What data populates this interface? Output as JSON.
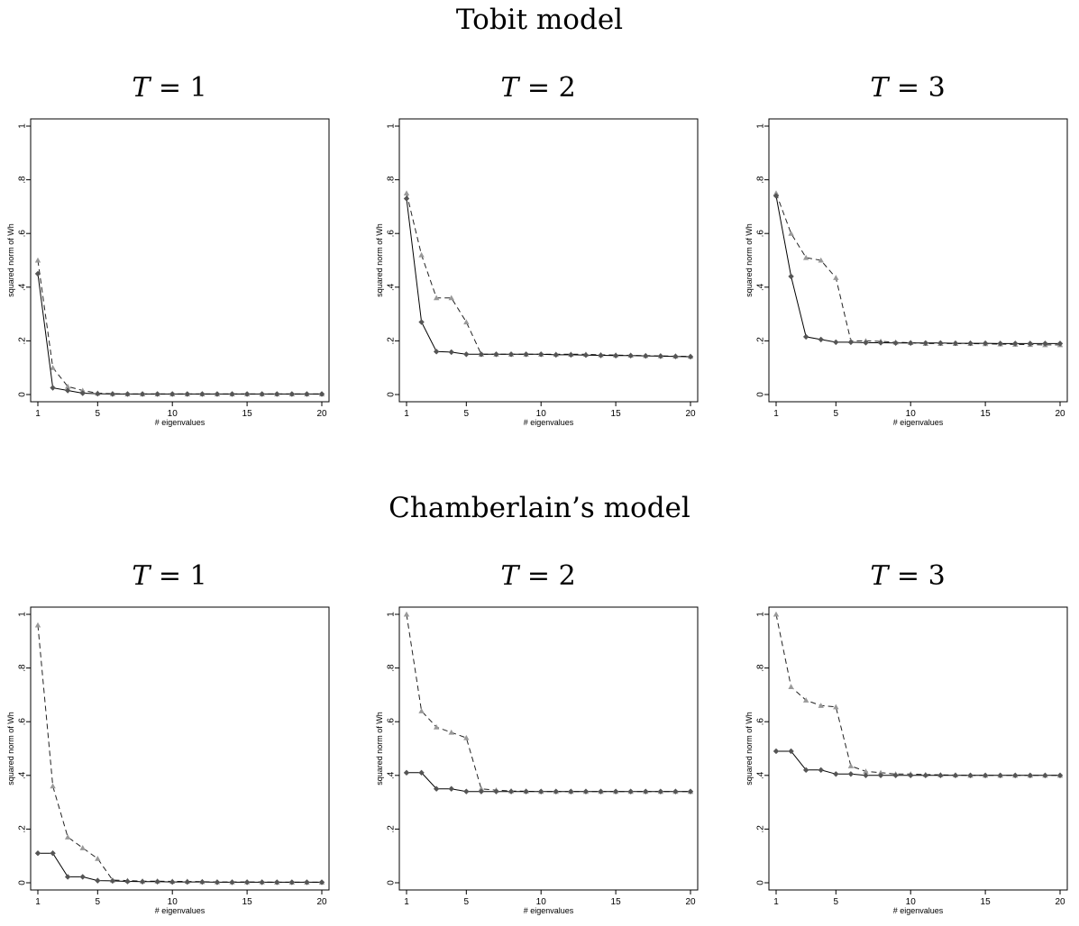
{
  "sections": [
    {
      "title": "Tobit model"
    },
    {
      "title": "Chamberlain’s model"
    }
  ],
  "colors": {
    "solid_series": "#000000",
    "dashed_series": "#555555",
    "solid_marker": "#555555",
    "dashed_marker": "#999999",
    "frame": "#000000"
  },
  "panels": [
    {
      "title_var": "T",
      "title_eq": "= 1"
    },
    {
      "title_var": "T",
      "title_eq": "= 2"
    },
    {
      "title_var": "T",
      "title_eq": "= 3"
    },
    {
      "title_var": "T",
      "title_eq": "= 1"
    },
    {
      "title_var": "T",
      "title_eq": "= 2"
    },
    {
      "title_var": "T",
      "title_eq": "= 3"
    }
  ],
  "chart_data": [
    {
      "type": "line",
      "section": "Tobit model",
      "panel_title": "T = 1",
      "xlabel": "# eigenvalues",
      "ylabel": "squared norm of Wh",
      "xlim": [
        1,
        20
      ],
      "ylim": [
        0,
        1
      ],
      "xticks": [
        1,
        5,
        10,
        15,
        20
      ],
      "xtick_labels": [
        "1",
        "5",
        "10",
        "15",
        "20"
      ],
      "yticks": [
        0,
        0.2,
        0.4,
        0.6,
        0.8,
        1
      ],
      "ytick_labels": [
        "0",
        ".2",
        ".4",
        ".6",
        ".8",
        "1"
      ],
      "grid": false,
      "legend": "none",
      "x": [
        1,
        2,
        3,
        4,
        5,
        6,
        7,
        8,
        9,
        10,
        11,
        12,
        13,
        14,
        15,
        16,
        17,
        18,
        19,
        20
      ],
      "series": [
        {
          "style": "solid",
          "marker": "diamond",
          "values": [
            0.45,
            0.025,
            0.015,
            0.005,
            0.003,
            0.002,
            0.002,
            0.002,
            0.002,
            0.002,
            0.002,
            0.002,
            0.002,
            0.002,
            0.002,
            0.002,
            0.002,
            0.002,
            0.002,
            0.002
          ]
        },
        {
          "style": "dashed",
          "marker": "triangle",
          "values": [
            0.5,
            0.1,
            0.03,
            0.015,
            0.005,
            0.003,
            0.002,
            0.002,
            0.002,
            0.002,
            0.002,
            0.002,
            0.002,
            0.002,
            0.002,
            0.002,
            0.002,
            0.002,
            0.002,
            0.002
          ]
        }
      ]
    },
    {
      "type": "line",
      "section": "Tobit model",
      "panel_title": "T = 2",
      "xlabel": "# eigenvalues",
      "ylabel": "squared norm of Wh",
      "xlim": [
        1,
        20
      ],
      "ylim": [
        0,
        1
      ],
      "xticks": [
        1,
        5,
        10,
        15,
        20
      ],
      "xtick_labels": [
        "1",
        "5",
        "10",
        "15",
        "20"
      ],
      "yticks": [
        0,
        0.2,
        0.4,
        0.6,
        0.8,
        1
      ],
      "ytick_labels": [
        "0",
        ".2",
        ".4",
        ".6",
        ".8",
        "1"
      ],
      "grid": false,
      "legend": "none",
      "x": [
        1,
        2,
        3,
        4,
        5,
        6,
        7,
        8,
        9,
        10,
        11,
        12,
        13,
        14,
        15,
        16,
        17,
        18,
        19,
        20
      ],
      "series": [
        {
          "style": "solid",
          "marker": "diamond",
          "values": [
            0.73,
            0.27,
            0.16,
            0.158,
            0.15,
            0.15,
            0.15,
            0.15,
            0.15,
            0.15,
            0.148,
            0.148,
            0.147,
            0.146,
            0.145,
            0.145,
            0.144,
            0.143,
            0.142,
            0.141
          ]
        },
        {
          "style": "dashed",
          "marker": "triangle",
          "values": [
            0.75,
            0.52,
            0.36,
            0.36,
            0.27,
            0.15,
            0.15,
            0.15,
            0.15,
            0.15,
            0.15,
            0.15,
            0.15,
            0.148,
            0.147,
            0.146,
            0.145,
            0.144,
            0.143,
            0.142
          ]
        }
      ]
    },
    {
      "type": "line",
      "section": "Tobit model",
      "panel_title": "T = 3",
      "xlabel": "# eigenvalues",
      "ylabel": "squared norm of Wh",
      "xlim": [
        1,
        20
      ],
      "ylim": [
        0,
        1
      ],
      "xticks": [
        1,
        5,
        10,
        15,
        20
      ],
      "xtick_labels": [
        "1",
        "5",
        "10",
        "15",
        "20"
      ],
      "yticks": [
        0,
        0.2,
        0.4,
        0.6,
        0.8,
        1
      ],
      "ytick_labels": [
        "0",
        ".2",
        ".4",
        ".6",
        ".8",
        "1"
      ],
      "grid": false,
      "legend": "none",
      "x": [
        1,
        2,
        3,
        4,
        5,
        6,
        7,
        8,
        9,
        10,
        11,
        12,
        13,
        14,
        15,
        16,
        17,
        18,
        19,
        20
      ],
      "series": [
        {
          "style": "solid",
          "marker": "diamond",
          "values": [
            0.74,
            0.44,
            0.215,
            0.205,
            0.195,
            0.195,
            0.193,
            0.193,
            0.192,
            0.192,
            0.192,
            0.192,
            0.191,
            0.191,
            0.191,
            0.19,
            0.19,
            0.19,
            0.19,
            0.19
          ]
        },
        {
          "style": "dashed",
          "marker": "triangle",
          "values": [
            0.75,
            0.6,
            0.51,
            0.5,
            0.435,
            0.2,
            0.2,
            0.198,
            0.195,
            0.193,
            0.19,
            0.19,
            0.19,
            0.19,
            0.189,
            0.188,
            0.187,
            0.186,
            0.185,
            0.185
          ]
        }
      ]
    },
    {
      "type": "line",
      "section": "Chamberlain’s model",
      "panel_title": "T = 1",
      "xlabel": "# eigenvalues",
      "ylabel": "squared norm of Wh",
      "xlim": [
        1,
        20
      ],
      "ylim": [
        0,
        1
      ],
      "xticks": [
        1,
        5,
        10,
        15,
        20
      ],
      "xtick_labels": [
        "1",
        "5",
        "10",
        "15",
        "20"
      ],
      "yticks": [
        0,
        0.2,
        0.4,
        0.6,
        0.8,
        1
      ],
      "ytick_labels": [
        "0",
        ".2",
        ".4",
        ".6",
        ".8",
        "1"
      ],
      "grid": false,
      "legend": "none",
      "x": [
        1,
        2,
        3,
        4,
        5,
        6,
        7,
        8,
        9,
        10,
        11,
        12,
        13,
        14,
        15,
        16,
        17,
        18,
        19,
        20
      ],
      "series": [
        {
          "style": "solid",
          "marker": "diamond",
          "values": [
            0.11,
            0.11,
            0.022,
            0.022,
            0.008,
            0.007,
            0.005,
            0.004,
            0.004,
            0.003,
            0.003,
            0.003,
            0.002,
            0.002,
            0.002,
            0.002,
            0.002,
            0.002,
            0.002,
            0.002
          ]
        },
        {
          "style": "dashed",
          "marker": "triangle",
          "values": [
            0.96,
            0.36,
            0.17,
            0.13,
            0.09,
            0.01,
            0.008,
            0.006,
            0.006,
            0.005,
            0.005,
            0.004,
            0.003,
            0.003,
            0.003,
            0.003,
            0.002,
            0.002,
            0.002,
            0.002
          ]
        }
      ]
    },
    {
      "type": "line",
      "section": "Chamberlain’s model",
      "panel_title": "T = 2",
      "xlabel": "# eigenvalues",
      "ylabel": "squared norm of Wh",
      "xlim": [
        1,
        20
      ],
      "ylim": [
        0,
        1
      ],
      "xticks": [
        1,
        5,
        10,
        15,
        20
      ],
      "xtick_labels": [
        "1",
        "5",
        "10",
        "15",
        "20"
      ],
      "yticks": [
        0,
        0.2,
        0.4,
        0.6,
        0.8,
        1
      ],
      "ytick_labels": [
        "0",
        ".2",
        ".4",
        ".6",
        ".8",
        "1"
      ],
      "grid": false,
      "legend": "none",
      "x": [
        1,
        2,
        3,
        4,
        5,
        6,
        7,
        8,
        9,
        10,
        11,
        12,
        13,
        14,
        15,
        16,
        17,
        18,
        19,
        20
      ],
      "series": [
        {
          "style": "solid",
          "marker": "diamond",
          "values": [
            0.41,
            0.41,
            0.35,
            0.35,
            0.34,
            0.34,
            0.34,
            0.34,
            0.34,
            0.34,
            0.34,
            0.34,
            0.34,
            0.34,
            0.34,
            0.34,
            0.34,
            0.34,
            0.34,
            0.34
          ]
        },
        {
          "style": "dashed",
          "marker": "triangle",
          "values": [
            1.0,
            0.64,
            0.58,
            0.56,
            0.54,
            0.35,
            0.345,
            0.342,
            0.341,
            0.34,
            0.34,
            0.34,
            0.34,
            0.34,
            0.34,
            0.34,
            0.34,
            0.34,
            0.34,
            0.34
          ]
        }
      ]
    },
    {
      "type": "line",
      "section": "Chamberlain’s model",
      "panel_title": "T = 3",
      "xlabel": "# eigenvalues",
      "ylabel": "squared norm of Wh",
      "xlim": [
        1,
        20
      ],
      "ylim": [
        0,
        1
      ],
      "xticks": [
        1,
        5,
        10,
        15,
        20
      ],
      "xtick_labels": [
        "1",
        "5",
        "10",
        "15",
        "20"
      ],
      "yticks": [
        0,
        0.2,
        0.4,
        0.6,
        0.8,
        1
      ],
      "ytick_labels": [
        "0",
        ".2",
        ".4",
        ".6",
        ".8",
        "1"
      ],
      "grid": false,
      "legend": "none",
      "x": [
        1,
        2,
        3,
        4,
        5,
        6,
        7,
        8,
        9,
        10,
        11,
        12,
        13,
        14,
        15,
        16,
        17,
        18,
        19,
        20
      ],
      "series": [
        {
          "style": "solid",
          "marker": "diamond",
          "values": [
            0.49,
            0.49,
            0.42,
            0.42,
            0.405,
            0.405,
            0.4,
            0.4,
            0.4,
            0.4,
            0.4,
            0.4,
            0.4,
            0.4,
            0.4,
            0.4,
            0.4,
            0.4,
            0.4,
            0.4
          ]
        },
        {
          "style": "dashed",
          "marker": "triangle",
          "values": [
            1.0,
            0.73,
            0.68,
            0.66,
            0.655,
            0.435,
            0.415,
            0.41,
            0.405,
            0.405,
            0.403,
            0.402,
            0.401,
            0.4,
            0.4,
            0.4,
            0.4,
            0.4,
            0.4,
            0.4
          ]
        }
      ]
    }
  ]
}
